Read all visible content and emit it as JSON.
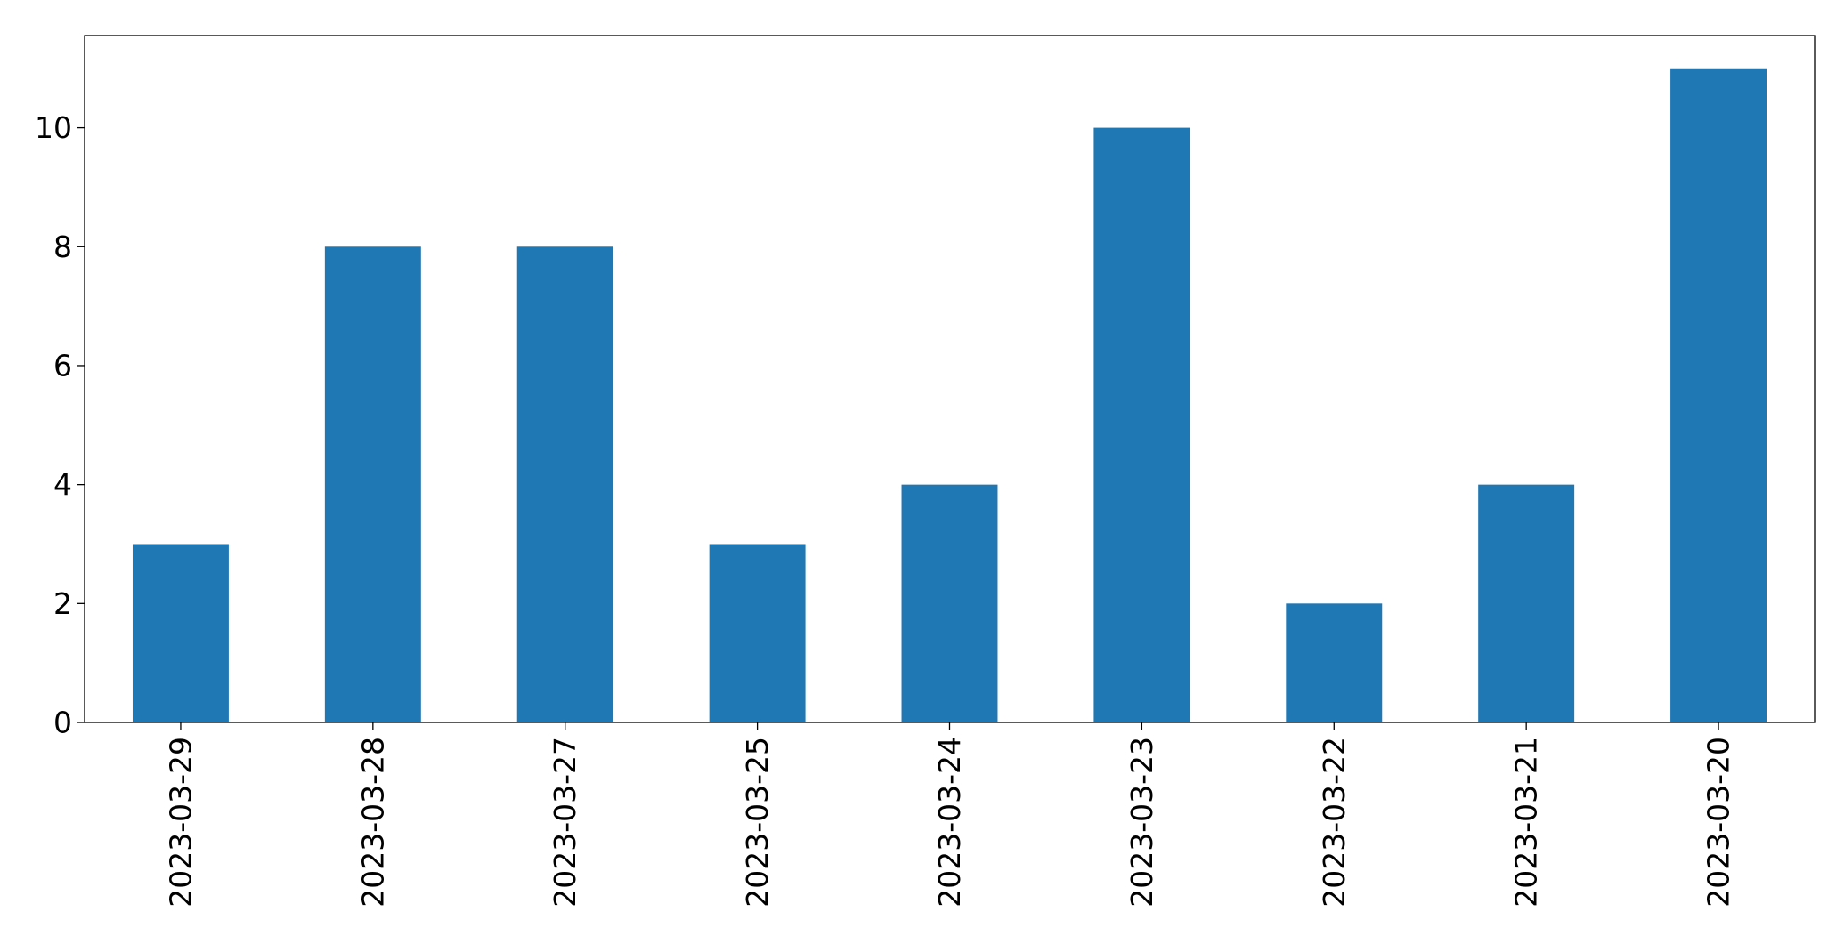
{
  "chart_data": {
    "type": "bar",
    "categories": [
      "2023-03-29",
      "2023-03-28",
      "2023-03-27",
      "2023-03-25",
      "2023-03-24",
      "2023-03-23",
      "2023-03-22",
      "2023-03-21",
      "2023-03-20"
    ],
    "values": [
      3,
      8,
      8,
      3,
      4,
      10,
      2,
      4,
      11
    ],
    "title": "",
    "xlabel": "",
    "ylabel": "",
    "ylim": [
      0,
      11.55
    ],
    "yticks": [
      0,
      2,
      4,
      6,
      8,
      10
    ],
    "grid": false,
    "legend": "none",
    "bar_color": "#1f77b4"
  }
}
